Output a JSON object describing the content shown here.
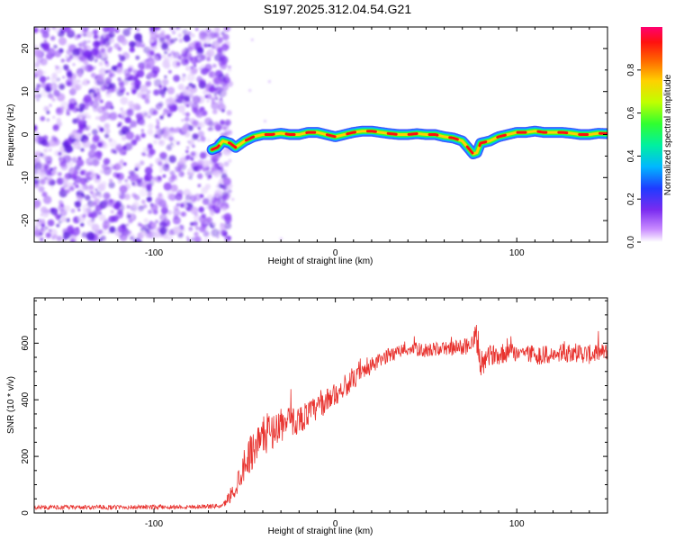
{
  "title": "S197.2025.312.04.54.G21",
  "colors": {
    "trace": "#e8322e",
    "scatter": "#7a2bf0",
    "frame": "#000000"
  },
  "chart_data": [
    {
      "type": "heatmap",
      "title": "S197.2025.312.04.54.G21",
      "xlabel": "Height of straight line (km)",
      "ylabel": "Frequency (Hz)",
      "xlim": [
        -166,
        150
      ],
      "ylim": [
        -25,
        25
      ],
      "xticks": [
        -100,
        0,
        100
      ],
      "xtick_labels": [
        "-100",
        "0",
        "100"
      ],
      "yticks": [
        -20,
        -10,
        0,
        10,
        20
      ],
      "ytick_labels": [
        "-20",
        "-10",
        "0",
        "10",
        "20"
      ],
      "noise_region_x": [
        -166,
        -62
      ],
      "ridge": {
        "x": [
          -68,
          -65,
          -62,
          -58,
          -55,
          -50,
          -45,
          -40,
          -35,
          -30,
          -25,
          -20,
          -15,
          -10,
          -5,
          0,
          5,
          10,
          15,
          20,
          25,
          30,
          35,
          40,
          45,
          50,
          55,
          60,
          65,
          70,
          72,
          74,
          76,
          78,
          80,
          85,
          90,
          95,
          100,
          105,
          110,
          115,
          120,
          125,
          130,
          135,
          140,
          145,
          150
        ],
        "freq": [
          -3.5,
          -3,
          -1.5,
          -2,
          -3,
          -1.5,
          -0.5,
          0,
          0,
          0.3,
          0,
          0,
          0.5,
          0.5,
          0,
          -0.5,
          0,
          0.5,
          0.8,
          0.8,
          0.5,
          0.2,
          0,
          0,
          0.2,
          0,
          0,
          -0.5,
          -0.8,
          -1.5,
          -2.5,
          -3.5,
          -4.5,
          -4.2,
          -2,
          -1.5,
          -0.5,
          0,
          0.5,
          0.5,
          0.8,
          0.5,
          0.5,
          0.5,
          0.3,
          0,
          0,
          0.3,
          0.2
        ]
      },
      "colorbar": {
        "label": "Normalized spectral amplitude",
        "ticks": [
          0.0,
          0.2,
          0.4,
          0.6,
          0.8
        ],
        "tick_labels": [
          "0.0",
          "0.2",
          "0.4",
          "0.6",
          "0.8"
        ],
        "range": [
          0,
          1
        ]
      }
    },
    {
      "type": "line",
      "xlabel": "Height of straight line (km)",
      "ylabel": "SNR (10 * v/v)",
      "xlim": [
        -166,
        150
      ],
      "ylim": [
        0,
        760
      ],
      "xticks": [
        -100,
        0,
        100
      ],
      "xtick_labels": [
        "-100",
        "0",
        "100"
      ],
      "yticks": [
        0,
        200,
        400,
        600
      ],
      "ytick_labels": [
        "0",
        "200",
        "400",
        "600"
      ],
      "series": [
        {
          "name": "SNR",
          "envelope_x": [
            -166,
            -120,
            -80,
            -62,
            -55,
            -50,
            -45,
            -40,
            -30,
            -20,
            -10,
            0,
            10,
            20,
            30,
            40,
            50,
            60,
            70,
            75,
            78,
            80,
            82,
            85,
            90,
            100,
            110,
            120,
            130,
            140,
            150
          ],
          "envelope_y": [
            20,
            20,
            22,
            25,
            90,
            180,
            230,
            270,
            310,
            330,
            370,
            420,
            470,
            520,
            560,
            580,
            575,
            580,
            585,
            600,
            610,
            540,
            520,
            560,
            560,
            570,
            560,
            555,
            570,
            560,
            570
          ],
          "noise_amplitude": [
            8,
            8,
            8,
            8,
            40,
            60,
            70,
            70,
            60,
            50,
            45,
            40,
            35,
            30,
            25,
            25,
            25,
            25,
            30,
            35,
            60,
            60,
            40,
            35,
            35,
            35,
            35,
            35,
            35,
            35,
            30
          ]
        }
      ]
    }
  ]
}
